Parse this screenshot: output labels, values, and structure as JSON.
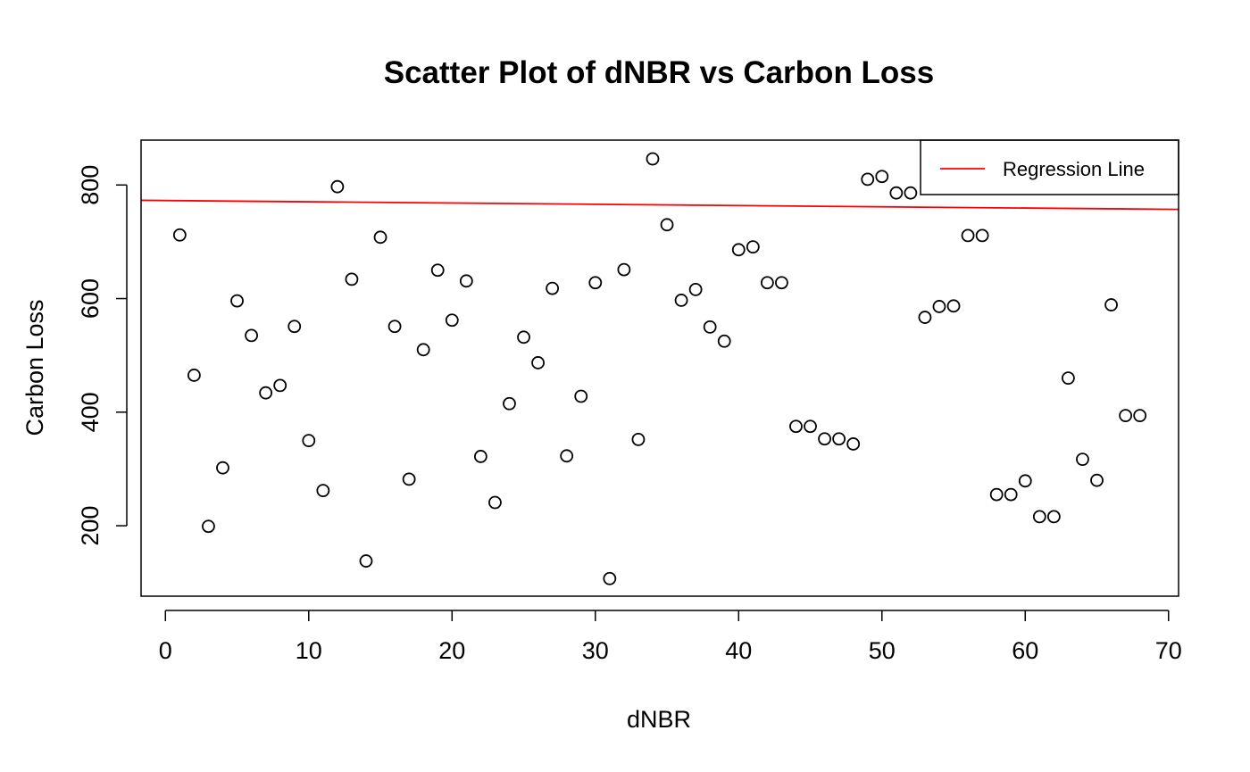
{
  "chart_data": {
    "type": "scatter",
    "title": "Scatter Plot of dNBR vs Carbon Loss",
    "xlabel": "dNBR",
    "ylabel": "Carbon Loss",
    "xlim": [
      -1.7,
      70.7
    ],
    "ylim": [
      76,
      879
    ],
    "xticks": [
      0,
      10,
      20,
      30,
      40,
      50,
      60,
      70
    ],
    "yticks": [
      200,
      400,
      600,
      800
    ],
    "grid": false,
    "legend": {
      "position": "top-right",
      "entries": [
        {
          "label": "Regression Line",
          "color": "#ff0000"
        }
      ]
    },
    "series": [
      {
        "marker": "open-circle",
        "color": "#000000",
        "points": [
          {
            "x": 1,
            "y": 712
          },
          {
            "x": 2,
            "y": 465
          },
          {
            "x": 3,
            "y": 199
          },
          {
            "x": 4,
            "y": 302
          },
          {
            "x": 5,
            "y": 596
          },
          {
            "x": 6,
            "y": 535
          },
          {
            "x": 7,
            "y": 434
          },
          {
            "x": 8,
            "y": 447
          },
          {
            "x": 9,
            "y": 551
          },
          {
            "x": 10,
            "y": 350
          },
          {
            "x": 11,
            "y": 262
          },
          {
            "x": 12,
            "y": 797
          },
          {
            "x": 13,
            "y": 634
          },
          {
            "x": 14,
            "y": 138
          },
          {
            "x": 15,
            "y": 708
          },
          {
            "x": 16,
            "y": 551
          },
          {
            "x": 17,
            "y": 282
          },
          {
            "x": 18,
            "y": 510
          },
          {
            "x": 19,
            "y": 650
          },
          {
            "x": 20,
            "y": 562
          },
          {
            "x": 21,
            "y": 631
          },
          {
            "x": 22,
            "y": 322
          },
          {
            "x": 23,
            "y": 241
          },
          {
            "x": 24,
            "y": 415
          },
          {
            "x": 25,
            "y": 532
          },
          {
            "x": 26,
            "y": 487
          },
          {
            "x": 27,
            "y": 618
          },
          {
            "x": 28,
            "y": 323
          },
          {
            "x": 29,
            "y": 428
          },
          {
            "x": 30,
            "y": 628
          },
          {
            "x": 31,
            "y": 107
          },
          {
            "x": 32,
            "y": 651
          },
          {
            "x": 33,
            "y": 352
          },
          {
            "x": 34,
            "y": 846
          },
          {
            "x": 35,
            "y": 730
          },
          {
            "x": 36,
            "y": 597
          },
          {
            "x": 37,
            "y": 616
          },
          {
            "x": 38,
            "y": 550
          },
          {
            "x": 39,
            "y": 525
          },
          {
            "x": 40,
            "y": 686
          },
          {
            "x": 41,
            "y": 691
          },
          {
            "x": 42,
            "y": 628
          },
          {
            "x": 43,
            "y": 628
          },
          {
            "x": 44,
            "y": 375
          },
          {
            "x": 45,
            "y": 375
          },
          {
            "x": 46,
            "y": 353
          },
          {
            "x": 47,
            "y": 353
          },
          {
            "x": 48,
            "y": 344
          },
          {
            "x": 49,
            "y": 810
          },
          {
            "x": 50,
            "y": 815
          },
          {
            "x": 51,
            "y": 786
          },
          {
            "x": 52,
            "y": 786
          },
          {
            "x": 53,
            "y": 567
          },
          {
            "x": 54,
            "y": 586
          },
          {
            "x": 55,
            "y": 587
          },
          {
            "x": 56,
            "y": 711
          },
          {
            "x": 57,
            "y": 711
          },
          {
            "x": 58,
            "y": 255
          },
          {
            "x": 59,
            "y": 255
          },
          {
            "x": 60,
            "y": 279
          },
          {
            "x": 61,
            "y": 216
          },
          {
            "x": 62,
            "y": 216
          },
          {
            "x": 63,
            "y": 460
          },
          {
            "x": 64,
            "y": 317
          },
          {
            "x": 65,
            "y": 280
          },
          {
            "x": 66,
            "y": 589
          },
          {
            "x": 67,
            "y": 394
          },
          {
            "x": 68,
            "y": 394
          }
        ]
      }
    ],
    "regression_line": {
      "label": "Regression Line",
      "color": "#ff0000",
      "points": [
        {
          "x": -1.7,
          "y": 773
        },
        {
          "x": 70.7,
          "y": 757
        }
      ]
    }
  }
}
